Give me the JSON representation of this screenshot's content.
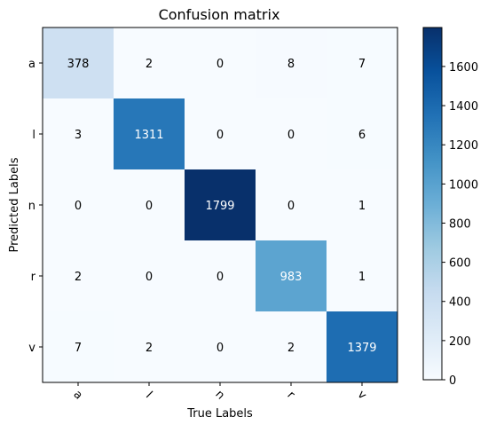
{
  "chart_data": {
    "type": "heatmap",
    "title": "Confusion matrix",
    "xlabel": "True Labels",
    "ylabel": "Predicted Labels",
    "x_categories": [
      "a",
      "l",
      "n",
      "r",
      "v"
    ],
    "y_categories": [
      "a",
      "l",
      "n",
      "r",
      "v"
    ],
    "values": [
      [
        378,
        2,
        0,
        8,
        7
      ],
      [
        3,
        1311,
        0,
        0,
        6
      ],
      [
        0,
        0,
        1799,
        0,
        1
      ],
      [
        2,
        0,
        0,
        983,
        1
      ],
      [
        7,
        2,
        0,
        2,
        1379
      ]
    ],
    "colormap": "Blues",
    "colorbar": {
      "range": [
        0,
        1799
      ],
      "ticks": [
        0,
        200,
        400,
        600,
        800,
        1000,
        1200,
        1400,
        1600
      ]
    },
    "x_tick_rotation": "45 degrees",
    "grid": false
  }
}
